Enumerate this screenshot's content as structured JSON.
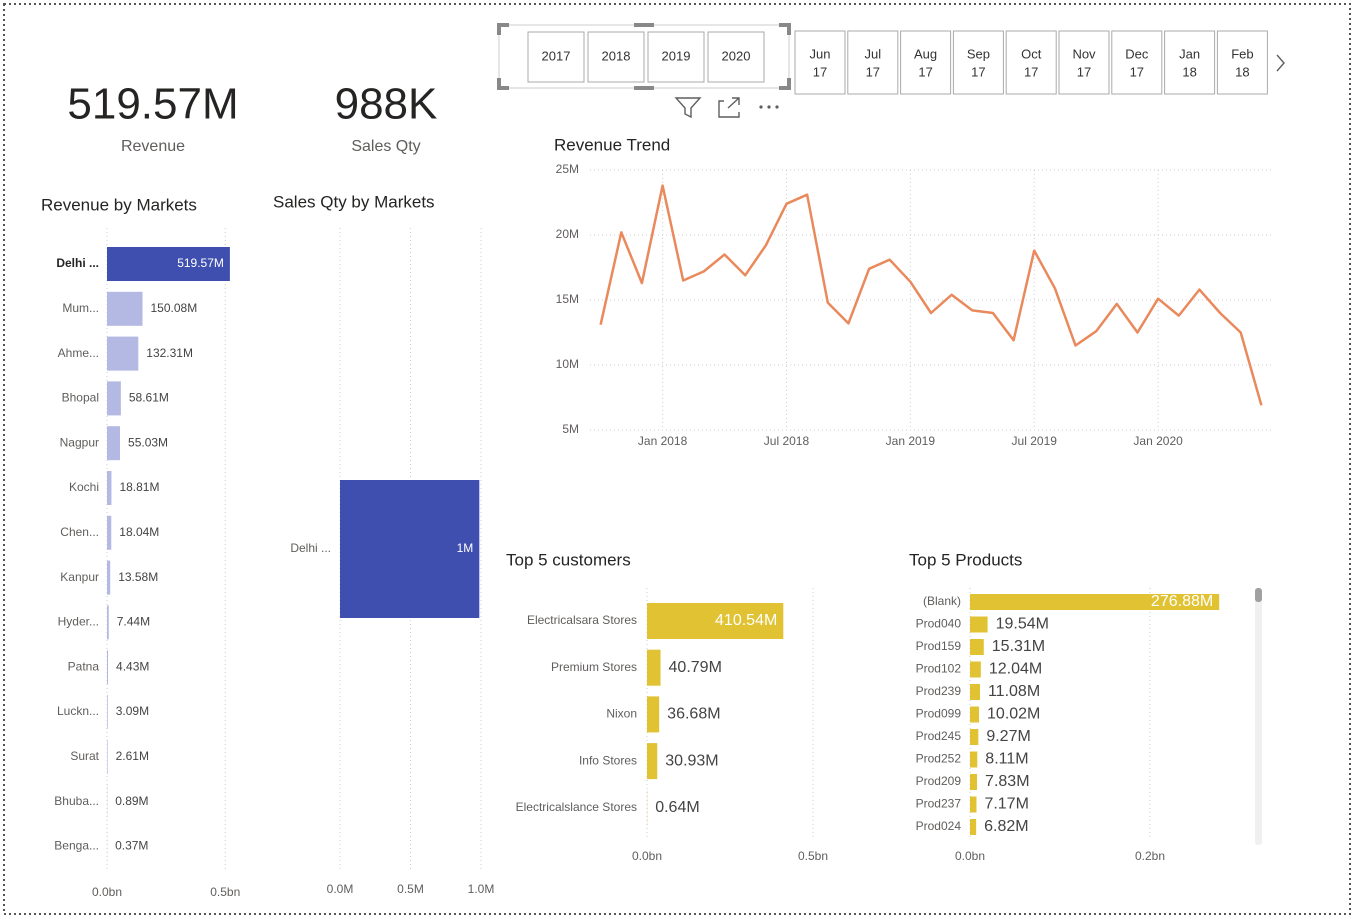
{
  "cards": [
    {
      "value": "519.57M",
      "label": "Revenue"
    },
    {
      "value": "988K",
      "label": "Sales Qty"
    }
  ],
  "year_slicer": [
    "2017",
    "2018",
    "2019",
    "2020"
  ],
  "month_slicer": [
    {
      "month": "Jun",
      "year": "17"
    },
    {
      "month": "Jul",
      "year": "17"
    },
    {
      "month": "Aug",
      "year": "17"
    },
    {
      "month": "Sep",
      "year": "17"
    },
    {
      "month": "Oct",
      "year": "17"
    },
    {
      "month": "Nov",
      "year": "17"
    },
    {
      "month": "Dec",
      "year": "17"
    },
    {
      "month": "Jan",
      "year": "18"
    },
    {
      "month": "Feb",
      "year": "18"
    }
  ],
  "chart_data": [
    {
      "type": "bar",
      "orientation": "horizontal",
      "title": "Revenue by Markets",
      "categories": [
        "Delhi ...",
        "Mum...",
        "Ahme...",
        "Bhopal",
        "Nagpur",
        "Kochi",
        "Chen...",
        "Kanpur",
        "Hyder...",
        "Patna",
        "Luckn...",
        "Surat",
        "Bhuba...",
        "Benga..."
      ],
      "values": [
        0.51957,
        0.15008,
        0.13231,
        0.05861,
        0.05503,
        0.01881,
        0.01804,
        0.01358,
        0.00744,
        0.00443,
        0.00309,
        0.00261,
        0.00089,
        0.00037
      ],
      "value_labels": [
        "519.57M",
        "150.08M",
        "132.31M",
        "58.61M",
        "55.03M",
        "18.81M",
        "18.04M",
        "13.58M",
        "7.44M",
        "4.43M",
        "3.09M",
        "2.61M",
        "0.89M",
        "0.37M"
      ],
      "colors": [
        "#3f4fb0",
        "#b4b9e3",
        "#b4b9e3",
        "#b4b9e3",
        "#b4b9e3",
        "#b4b9e3",
        "#b4b9e3",
        "#b4b9e3",
        "#b4b9e3",
        "#b4b9e3",
        "#b4b9e3",
        "#b4b9e3",
        "#b4b9e3",
        "#b4b9e3"
      ],
      "xlim": [
        0,
        0.52
      ],
      "xticks": [
        {
          "value": 0,
          "label": "0.0bn"
        },
        {
          "value": 0.5,
          "label": "0.5bn"
        }
      ],
      "grid": true
    },
    {
      "type": "bar",
      "orientation": "horizontal",
      "title": "Sales Qty by Markets",
      "categories": [
        "Delhi ..."
      ],
      "values": [
        0.988
      ],
      "value_labels": [
        "1M"
      ],
      "color": "#3f4fb0",
      "xlim": [
        0,
        1
      ],
      "xticks": [
        {
          "value": 0,
          "label": "0.0M"
        },
        {
          "value": 0.5,
          "label": "0.5M"
        },
        {
          "value": 1,
          "label": "1.0M"
        }
      ],
      "grid": true
    },
    {
      "type": "line",
      "title": "Revenue Trend",
      "color": "#e9895c",
      "x": [
        "2017-10",
        "2017-11",
        "2017-12",
        "2018-01",
        "2018-02",
        "2018-03",
        "2018-04",
        "2018-05",
        "2018-06",
        "2018-07",
        "2018-08",
        "2018-09",
        "2018-10",
        "2018-11",
        "2018-12",
        "2019-01",
        "2019-02",
        "2019-03",
        "2019-04",
        "2019-05",
        "2019-06",
        "2019-07",
        "2019-08",
        "2019-09",
        "2019-10",
        "2019-11",
        "2019-12",
        "2020-01",
        "2020-02",
        "2020-03",
        "2020-04",
        "2020-05",
        "2020-06"
      ],
      "values": [
        13.1,
        20.2,
        16.3,
        23.8,
        16.5,
        17.2,
        18.5,
        16.9,
        19.2,
        22.4,
        23.1,
        14.8,
        13.2,
        17.4,
        18.1,
        16.4,
        14.0,
        15.4,
        14.2,
        14.0,
        11.9,
        18.8,
        15.9,
        11.5,
        12.6,
        14.7,
        12.5,
        15.1,
        13.8,
        15.8,
        14.0,
        12.5,
        6.9
      ],
      "xlim": [
        "2017-09",
        "2020-07"
      ],
      "xticks": [
        {
          "value": "2018-01",
          "label": "Jan 2018"
        },
        {
          "value": "2018-07",
          "label": "Jul 2018"
        },
        {
          "value": "2019-01",
          "label": "Jan 2019"
        },
        {
          "value": "2019-07",
          "label": "Jul 2019"
        },
        {
          "value": "2020-01",
          "label": "Jan 2020"
        }
      ],
      "ylim": [
        5,
        25
      ],
      "yticks": [
        {
          "value": 5,
          "label": "5M"
        },
        {
          "value": 10,
          "label": "10M"
        },
        {
          "value": 15,
          "label": "15M"
        },
        {
          "value": 20,
          "label": "20M"
        },
        {
          "value": 25,
          "label": "25M"
        }
      ],
      "grid": true
    },
    {
      "type": "bar",
      "orientation": "horizontal",
      "title": "Top 5 customers",
      "categories": [
        "Electricalsara Stores",
        "Premium Stores",
        "Nixon",
        "Info Stores",
        "Electricalslance Stores"
      ],
      "values": [
        0.41054,
        0.04079,
        0.03668,
        0.03093,
        0.00064
      ],
      "value_labels": [
        "410.54M",
        "40.79M",
        "36.68M",
        "30.93M",
        "0.64M"
      ],
      "color": "#e0c233",
      "xlim": [
        0,
        0.5
      ],
      "xticks": [
        {
          "value": 0,
          "label": "0.0bn"
        },
        {
          "value": 0.5,
          "label": "0.5bn"
        }
      ],
      "grid": true
    },
    {
      "type": "bar",
      "orientation": "horizontal",
      "title": "Top 5 Products",
      "categories": [
        "(Blank)",
        "Prod040",
        "Prod159",
        "Prod102",
        "Prod239",
        "Prod099",
        "Prod245",
        "Prod252",
        "Prod209",
        "Prod237",
        "Prod024"
      ],
      "values": [
        0.27688,
        0.01954,
        0.01531,
        0.01204,
        0.01108,
        0.01002,
        0.00927,
        0.00811,
        0.00783,
        0.00717,
        0.00682
      ],
      "value_labels": [
        "276.88M",
        "19.54M",
        "15.31M",
        "12.04M",
        "11.08M",
        "10.02M",
        "9.27M",
        "8.11M",
        "7.83M",
        "7.17M",
        "6.82M"
      ],
      "color": "#e0c233",
      "xlim": [
        0,
        0.28
      ],
      "xticks": [
        {
          "value": 0,
          "label": "0.0bn"
        },
        {
          "value": 0.2,
          "label": "0.2bn"
        }
      ],
      "grid": true
    }
  ]
}
